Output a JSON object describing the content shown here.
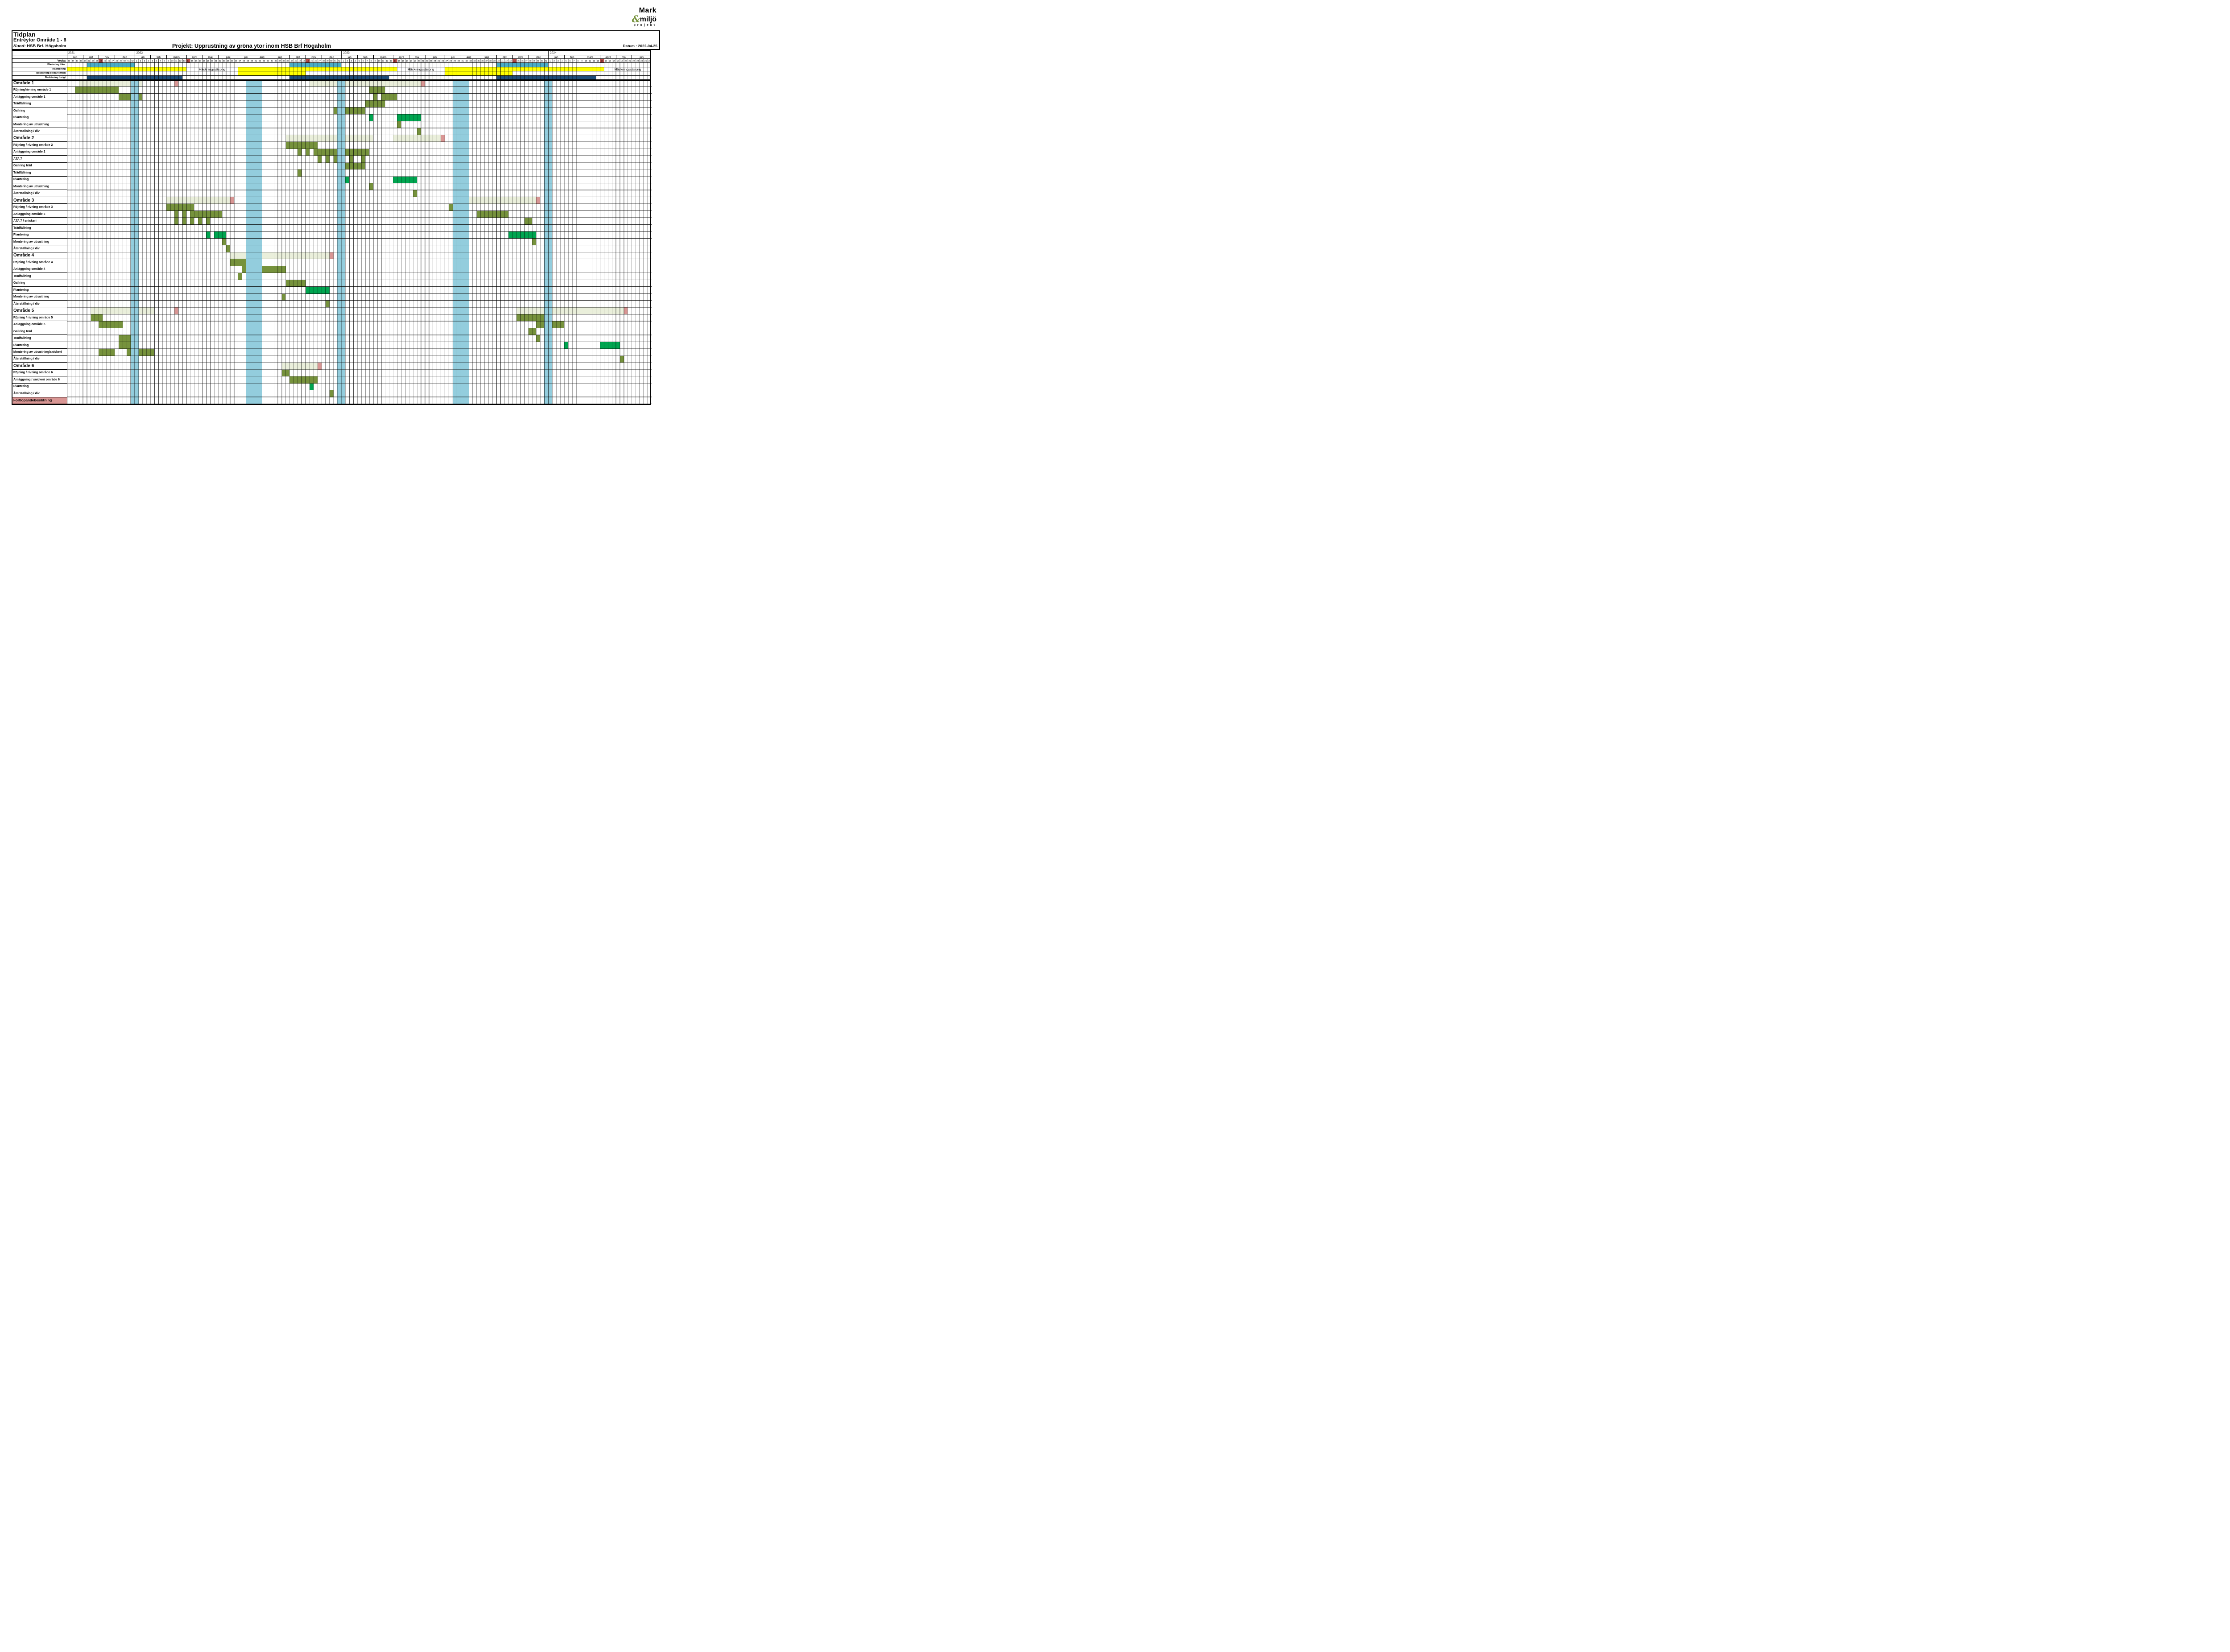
{
  "header": {
    "doc_title": "Tidplan",
    "subtitle": "Entréytor Område 1 - 6",
    "client_label": "Kund:",
    "client_name": "HSB Brf. Högaholm",
    "project_title": "Projekt: Upprustning av gröna ytor inom HSB Brf Högaholm",
    "date_label": "Datum : 2022-04-25"
  },
  "logo": {
    "line1": "Mark",
    "amp": "&",
    "line2": "miljö",
    "line3": "projekt",
    "accent": "#76923C"
  },
  "colors": {
    "olive": "#76923C",
    "green": "#00A550",
    "sage": "#EAEFDB",
    "pink": "#D99694",
    "teal": "#4BACC6",
    "yellow": "#FFFF00",
    "navy": "#1F4E79",
    "red": "#C0504D",
    "holiday": "#93CDDD"
  },
  "chart_data": {
    "type": "gantt",
    "title": "Projekt: Upprustning av gröna ytor inom HSB Brf Högaholm",
    "time_unit": "week",
    "weeks_total": 147,
    "week_row_label": "Vecka",
    "years": [
      {
        "label": "2021",
        "start": 0,
        "weeks": 17,
        "first_week": 36
      },
      {
        "label": "2022",
        "start": 17,
        "weeks": 52,
        "first_week": 1
      },
      {
        "label": "2023",
        "start": 69,
        "weeks": 52,
        "first_week": 1
      },
      {
        "label": "2024",
        "start": 121,
        "weeks": 26,
        "first_week": 1
      }
    ],
    "months": [
      {
        "label": "sep",
        "start": 0,
        "len": 4
      },
      {
        "label": "okt",
        "start": 4,
        "len": 4
      },
      {
        "label": "nov",
        "start": 8,
        "len": 4
      },
      {
        "label": "dec",
        "start": 12,
        "len": 5
      },
      {
        "label": "jan",
        "start": 17,
        "len": 4
      },
      {
        "label": "feb",
        "start": 21,
        "len": 4
      },
      {
        "label": "mars",
        "start": 25,
        "len": 5
      },
      {
        "label": "april",
        "start": 30,
        "len": 4
      },
      {
        "label": "maj",
        "start": 34,
        "len": 4
      },
      {
        "label": "juni",
        "start": 38,
        "len": 5
      },
      {
        "label": "juli",
        "start": 43,
        "len": 4
      },
      {
        "label": "aug",
        "start": 47,
        "len": 4
      },
      {
        "label": "sep",
        "start": 51,
        "len": 5
      },
      {
        "label": "okt",
        "start": 56,
        "len": 4
      },
      {
        "label": "nov",
        "start": 60,
        "len": 4
      },
      {
        "label": "dec",
        "start": 64,
        "len": 5
      },
      {
        "label": "jan",
        "start": 69,
        "len": 4
      },
      {
        "label": "feb",
        "start": 73,
        "len": 4
      },
      {
        "label": "mars",
        "start": 77,
        "len": 5
      },
      {
        "label": "april",
        "start": 82,
        "len": 4
      },
      {
        "label": "maj",
        "start": 86,
        "len": 4
      },
      {
        "label": "juni",
        "start": 90,
        "len": 5
      },
      {
        "label": "juli",
        "start": 95,
        "len": 4
      },
      {
        "label": "aug",
        "start": 99,
        "len": 4
      },
      {
        "label": "sep",
        "start": 103,
        "len": 5
      },
      {
        "label": "okt",
        "start": 108,
        "len": 4
      },
      {
        "label": "nov",
        "start": 112,
        "len": 4
      },
      {
        "label": "dec",
        "start": 116,
        "len": 5
      },
      {
        "label": "jan",
        "start": 121,
        "len": 4
      },
      {
        "label": "feb",
        "start": 125,
        "len": 4
      },
      {
        "label": "mars",
        "start": 129,
        "len": 5
      },
      {
        "label": "april",
        "start": 134,
        "len": 4
      },
      {
        "label": "maj",
        "start": 138,
        "len": 4
      },
      {
        "label": "juni",
        "start": 142,
        "len": 5
      }
    ],
    "red_weeks": [
      8,
      30,
      60,
      82,
      112,
      134
    ],
    "holiday_columns": [
      [
        16,
        18
      ],
      [
        45,
        49
      ],
      [
        68,
        70
      ],
      [
        97,
        101
      ],
      [
        120,
        122
      ]
    ],
    "season_label": "Häckningssäsong",
    "season_gaps": [
      [
        30,
        43
      ],
      [
        83,
        95
      ],
      [
        135,
        147
      ]
    ],
    "calendar_rows": [
      {
        "label": "Plantering lökar",
        "color": "teal",
        "bars": [
          [
            5,
            17
          ],
          [
            56,
            69
          ],
          [
            108,
            121
          ]
        ]
      },
      {
        "label": "Trädfällning",
        "color": "yellow",
        "bars": [
          [
            0,
            30
          ],
          [
            43,
            83
          ],
          [
            95,
            135
          ]
        ],
        "show_season": true
      },
      {
        "label": "Beskärning blödare (träd)",
        "color": "yellow",
        "bars": [
          [
            43,
            60
          ],
          [
            95,
            112
          ]
        ]
      },
      {
        "label": "Beskärning övrigt",
        "color": "navy",
        "bars": [
          [
            5,
            29
          ],
          [
            56,
            81
          ],
          [
            108,
            133
          ]
        ]
      }
    ],
    "rows": [
      {
        "label": "Område 1",
        "kind": "section",
        "bars": [
          {
            "s": 3,
            "e": 19,
            "c": "sage"
          },
          {
            "s": 27,
            "e": 28,
            "c": "pink"
          },
          {
            "s": 61,
            "e": 89,
            "c": "sage"
          },
          {
            "s": 89,
            "e": 90,
            "c": "pink"
          }
        ]
      },
      {
        "label": "Röjning/rivning område 1",
        "kind": "task",
        "bars": [
          {
            "s": 2,
            "e": 13,
            "c": "olive"
          },
          {
            "s": 76,
            "e": 80,
            "c": "olive"
          }
        ]
      },
      {
        "label": "Anläggning område 1",
        "kind": "task",
        "bars": [
          {
            "s": 13,
            "e": 19,
            "c": "olive"
          },
          {
            "s": 77,
            "e": 78,
            "c": "olive"
          },
          {
            "s": 79,
            "e": 83,
            "c": "olive"
          }
        ]
      },
      {
        "label": "Trädfällning",
        "kind": "task",
        "bars": [
          {
            "s": 75,
            "e": 80,
            "c": "olive"
          }
        ]
      },
      {
        "label": "Gallring",
        "kind": "task",
        "bars": [
          {
            "s": 67,
            "e": 75,
            "c": "olive"
          }
        ]
      },
      {
        "label": "Plantering",
        "kind": "task",
        "bars": [
          {
            "s": 76,
            "e": 77,
            "c": "green"
          },
          {
            "s": 83,
            "e": 89,
            "c": "green"
          }
        ]
      },
      {
        "label": "Montering av utrustning",
        "kind": "task",
        "bars": [
          {
            "s": 83,
            "e": 84,
            "c": "olive"
          }
        ]
      },
      {
        "label": "Återställning / div",
        "kind": "task",
        "bars": [
          {
            "s": 88,
            "e": 89,
            "c": "olive"
          }
        ]
      },
      {
        "label": "Område 2",
        "kind": "section",
        "bars": [
          {
            "s": 55,
            "e": 77,
            "c": "sage"
          },
          {
            "s": 82,
            "e": 94,
            "c": "sage"
          },
          {
            "s": 94,
            "e": 95,
            "c": "pink"
          }
        ]
      },
      {
        "label": "Röjning / rivning område 2",
        "kind": "task",
        "bars": [
          {
            "s": 55,
            "e": 63,
            "c": "olive"
          }
        ]
      },
      {
        "label": "Anläggning område 2",
        "kind": "task",
        "bars": [
          {
            "s": 58,
            "e": 59,
            "c": "olive"
          },
          {
            "s": 60,
            "e": 61,
            "c": "olive"
          },
          {
            "s": 62,
            "e": 76,
            "c": "olive"
          }
        ]
      },
      {
        "label": "ÄTA 7",
        "kind": "task",
        "bars": [
          {
            "s": 63,
            "e": 64,
            "c": "olive"
          },
          {
            "s": 65,
            "e": 66,
            "c": "olive"
          },
          {
            "s": 67,
            "e": 68,
            "c": "olive"
          },
          {
            "s": 71,
            "e": 72,
            "c": "olive"
          },
          {
            "s": 74,
            "e": 75,
            "c": "olive"
          }
        ]
      },
      {
        "label": "Gallring träd",
        "kind": "task",
        "bars": [
          {
            "s": 70,
            "e": 75,
            "c": "olive"
          }
        ]
      },
      {
        "label": "Trädfällning",
        "kind": "task",
        "bars": [
          {
            "s": 58,
            "e": 59,
            "c": "olive"
          }
        ]
      },
      {
        "label": "Plantering",
        "kind": "task",
        "bars": [
          {
            "s": 70,
            "e": 71,
            "c": "green"
          },
          {
            "s": 82,
            "e": 88,
            "c": "green"
          }
        ]
      },
      {
        "label": "Montering av utrustning",
        "kind": "task",
        "bars": [
          {
            "s": 76,
            "e": 77,
            "c": "olive"
          }
        ]
      },
      {
        "label": "Återställning / div",
        "kind": "task",
        "bars": [
          {
            "s": 87,
            "e": 88,
            "c": "olive"
          }
        ]
      },
      {
        "label": "Område 3",
        "kind": "section",
        "bars": [
          {
            "s": 25,
            "e": 41,
            "c": "sage"
          },
          {
            "s": 41,
            "e": 42,
            "c": "pink"
          },
          {
            "s": 97,
            "e": 118,
            "c": "sage"
          },
          {
            "s": 118,
            "e": 119,
            "c": "pink"
          }
        ]
      },
      {
        "label": "Röjning / rivning område 3",
        "kind": "task",
        "bars": [
          {
            "s": 25,
            "e": 32,
            "c": "olive"
          },
          {
            "s": 96,
            "e": 98,
            "c": "olive"
          }
        ]
      },
      {
        "label": "Anläggning område 3",
        "kind": "task",
        "bars": [
          {
            "s": 27,
            "e": 28,
            "c": "olive"
          },
          {
            "s": 29,
            "e": 30,
            "c": "olive"
          },
          {
            "s": 31,
            "e": 39,
            "c": "olive"
          },
          {
            "s": 103,
            "e": 111,
            "c": "olive"
          }
        ]
      },
      {
        "label": "ÄTA 7 / snickeri",
        "kind": "task",
        "bars": [
          {
            "s": 27,
            "e": 28,
            "c": "olive"
          },
          {
            "s": 29,
            "e": 30,
            "c": "olive"
          },
          {
            "s": 31,
            "e": 32,
            "c": "olive"
          },
          {
            "s": 33,
            "e": 34,
            "c": "olive"
          },
          {
            "s": 35,
            "e": 36,
            "c": "olive"
          },
          {
            "s": 115,
            "e": 117,
            "c": "olive"
          }
        ]
      },
      {
        "label": "Trädfällning",
        "kind": "task",
        "bars": [
          {
            "s": 97,
            "e": 99,
            "c": "olive"
          }
        ]
      },
      {
        "label": "Plantering",
        "kind": "task",
        "bars": [
          {
            "s": 35,
            "e": 36,
            "c": "green"
          },
          {
            "s": 37,
            "e": 40,
            "c": "green"
          },
          {
            "s": 111,
            "e": 118,
            "c": "green"
          }
        ]
      },
      {
        "label": "Montering av utrustning",
        "kind": "task",
        "bars": [
          {
            "s": 39,
            "e": 40,
            "c": "olive"
          },
          {
            "s": 117,
            "e": 118,
            "c": "olive"
          }
        ]
      },
      {
        "label": "Återställning / div",
        "kind": "task",
        "bars": [
          {
            "s": 40,
            "e": 41,
            "c": "olive"
          }
        ]
      },
      {
        "label": "Område 4",
        "kind": "section",
        "bars": [
          {
            "s": 41,
            "e": 66,
            "c": "sage"
          },
          {
            "s": 66,
            "e": 67,
            "c": "pink"
          }
        ]
      },
      {
        "label": "Röjning / rivning område 4",
        "kind": "task",
        "bars": [
          {
            "s": 41,
            "e": 45,
            "c": "olive"
          }
        ]
      },
      {
        "label": "Anläggning område 4",
        "kind": "task",
        "bars": [
          {
            "s": 44,
            "e": 45,
            "c": "olive"
          },
          {
            "s": 49,
            "e": 55,
            "c": "olive"
          }
        ]
      },
      {
        "label": "Trädfällning",
        "kind": "task",
        "bars": [
          {
            "s": 43,
            "e": 44,
            "c": "olive"
          }
        ]
      },
      {
        "label": "Gallring",
        "kind": "task",
        "bars": [
          {
            "s": 55,
            "e": 60,
            "c": "olive"
          }
        ]
      },
      {
        "label": "Plantering",
        "kind": "task",
        "bars": [
          {
            "s": 60,
            "e": 66,
            "c": "green"
          }
        ]
      },
      {
        "label": "Montering av utrustning",
        "kind": "task",
        "bars": [
          {
            "s": 54,
            "e": 55,
            "c": "olive"
          }
        ]
      },
      {
        "label": "Återställning / div",
        "kind": "task",
        "bars": [
          {
            "s": 65,
            "e": 66,
            "c": "olive"
          }
        ]
      },
      {
        "label": "Område 5",
        "kind": "section",
        "bars": [
          {
            "s": 6,
            "e": 22,
            "c": "sage"
          },
          {
            "s": 27,
            "e": 28,
            "c": "pink"
          },
          {
            "s": 113,
            "e": 140,
            "c": "sage"
          },
          {
            "s": 140,
            "e": 141,
            "c": "pink"
          }
        ]
      },
      {
        "label": "Röjning / rivning område 5",
        "kind": "task",
        "bars": [
          {
            "s": 6,
            "e": 9,
            "c": "olive"
          },
          {
            "s": 113,
            "e": 120,
            "c": "olive"
          }
        ]
      },
      {
        "label": "Anläggning område 5",
        "kind": "task",
        "bars": [
          {
            "s": 8,
            "e": 14,
            "c": "olive"
          },
          {
            "s": 118,
            "e": 125,
            "c": "olive"
          }
        ]
      },
      {
        "label": "Gallring träd",
        "kind": "task",
        "bars": [
          {
            "s": 116,
            "e": 118,
            "c": "olive"
          }
        ]
      },
      {
        "label": "Trädfällning",
        "kind": "task",
        "bars": [
          {
            "s": 13,
            "e": 16,
            "c": "olive"
          },
          {
            "s": 118,
            "e": 119,
            "c": "olive"
          }
        ]
      },
      {
        "label": "Plantering",
        "kind": "task",
        "bars": [
          {
            "s": 13,
            "e": 16,
            "c": "olive"
          },
          {
            "s": 125,
            "e": 126,
            "c": "green"
          },
          {
            "s": 134,
            "e": 139,
            "c": "green"
          }
        ]
      },
      {
        "label": "Montering av utrustning/snickeri",
        "kind": "task",
        "bars": [
          {
            "s": 8,
            "e": 12,
            "c": "olive"
          },
          {
            "s": 15,
            "e": 22,
            "c": "olive"
          }
        ]
      },
      {
        "label": "Återställning / div",
        "kind": "task",
        "bars": [
          {
            "s": 139,
            "e": 140,
            "c": "olive"
          }
        ]
      },
      {
        "label": "Område 6",
        "kind": "section",
        "bars": [
          {
            "s": 54,
            "e": 63,
            "c": "sage"
          },
          {
            "s": 63,
            "e": 64,
            "c": "pink"
          }
        ]
      },
      {
        "label": "Röjning / rivning område 6",
        "kind": "task",
        "bars": [
          {
            "s": 54,
            "e": 56,
            "c": "olive"
          }
        ]
      },
      {
        "label": "Anläggning / snickeri område 6",
        "kind": "task",
        "bars": [
          {
            "s": 56,
            "e": 63,
            "c": "olive"
          }
        ]
      },
      {
        "label": "Plantering",
        "kind": "task",
        "bars": [
          {
            "s": 61,
            "e": 62,
            "c": "green"
          }
        ]
      },
      {
        "label": "Återställning / div",
        "kind": "task",
        "bars": [
          {
            "s": 66,
            "e": 67,
            "c": "olive"
          }
        ]
      },
      {
        "label": "Fortlöpandebesiktning",
        "kind": "inspection",
        "bars": []
      }
    ]
  }
}
